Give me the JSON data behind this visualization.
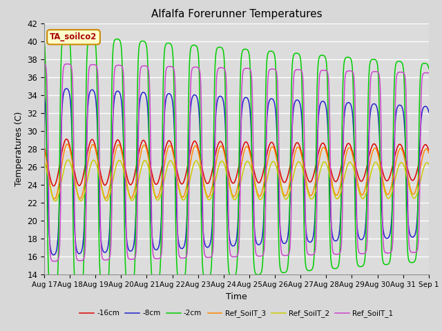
{
  "title": "Alfalfa Forerunner Temperatures",
  "xlabel": "Time",
  "ylabel": "Temperatures (C)",
  "ylim": [
    14,
    42
  ],
  "annotation": "TA_soilco2",
  "fig_facecolor": "#d8d8d8",
  "plot_bg": "#dcdcdc",
  "series": [
    {
      "label": "-16cm",
      "color": "#dd0000",
      "mean": 26.5,
      "amp": 2.2,
      "phase": 0.62,
      "skew": 0.0
    },
    {
      "label": "-8cm",
      "color": "#2222cc",
      "mean": 25.5,
      "amp": 8.5,
      "phase": 0.62,
      "skew": 2.0
    },
    {
      "label": "-2cm",
      "color": "#00cc00",
      "mean": 26.5,
      "amp": 12.5,
      "phase": 0.6,
      "skew": 3.0
    },
    {
      "label": "Ref_SoilT_3",
      "color": "#ff8800",
      "mean": 25.5,
      "amp": 2.8,
      "phase": 0.65,
      "skew": 0.0
    },
    {
      "label": "Ref_SoilT_2",
      "color": "#cccc00",
      "mean": 24.5,
      "amp": 2.2,
      "phase": 0.68,
      "skew": 0.0
    },
    {
      "label": "Ref_SoilT_1",
      "color": "#cc44cc",
      "mean": 26.5,
      "amp": 10.5,
      "phase": 0.66,
      "skew": 3.5
    }
  ],
  "tick_labels": [
    "Aug 17",
    "Aug 18",
    "Aug 19",
    "Aug 20",
    "Aug 21",
    "Aug 22",
    "Aug 23",
    "Aug 24",
    "Aug 25",
    "Aug 26",
    "Aug 27",
    "Aug 28",
    "Aug 29",
    "Aug 30",
    "Aug 31",
    "Sep 1"
  ],
  "tick_positions": [
    0,
    1,
    2,
    3,
    4,
    5,
    6,
    7,
    8,
    9,
    10,
    11,
    12,
    13,
    14,
    15
  ]
}
